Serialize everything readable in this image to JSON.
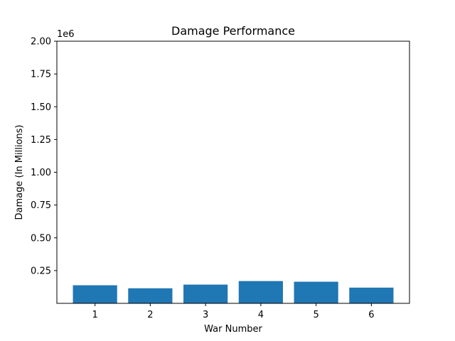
{
  "chart_data": {
    "type": "bar",
    "title": "Damage Performance",
    "xlabel": "War Number",
    "ylabel": "Damage (In Millions)",
    "offset_label": "1e6",
    "categories": [
      "1",
      "2",
      "3",
      "4",
      "5",
      "6"
    ],
    "values": [
      138000,
      115000,
      143000,
      170000,
      165000,
      120000
    ],
    "ylim": [
      0,
      2000000
    ],
    "yticks": [
      250000,
      500000,
      750000,
      1000000,
      1250000,
      1500000,
      1750000,
      2000000
    ],
    "ytick_labels": [
      "0.25",
      "0.50",
      "0.75",
      "1.00",
      "1.25",
      "1.50",
      "1.75",
      "2.00"
    ],
    "bar_color": "#1f77b4",
    "grid": false,
    "legend": "none"
  }
}
